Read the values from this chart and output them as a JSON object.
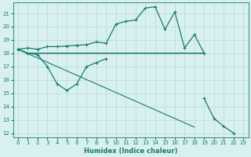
{
  "xlabel": "Humidex (Indice chaleur)",
  "x": [
    0,
    1,
    2,
    3,
    4,
    5,
    6,
    7,
    8,
    9,
    10,
    11,
    12,
    13,
    14,
    15,
    16,
    17,
    18,
    19,
    20,
    21,
    22,
    23
  ],
  "line1_x": [
    0,
    1,
    2,
    3,
    4,
    5,
    6,
    7,
    8,
    9,
    10,
    11,
    12,
    13,
    14,
    15,
    16,
    17,
    18,
    19
  ],
  "line1_y": [
    18.3,
    18.4,
    18.3,
    18.5,
    18.5,
    18.55,
    18.6,
    18.65,
    18.85,
    18.75,
    20.2,
    20.4,
    20.5,
    21.4,
    21.5,
    19.8,
    21.1,
    18.4,
    19.4,
    18.0
  ],
  "line2_x": [
    0,
    1,
    2,
    3,
    4,
    5,
    6,
    7,
    8,
    9,
    10,
    11,
    12,
    13,
    14,
    15,
    16,
    17,
    18,
    19
  ],
  "line2_y": [
    18.3,
    18.0,
    18.0,
    18.0,
    18.0,
    18.0,
    18.0,
    18.0,
    18.0,
    18.0,
    18.0,
    18.0,
    18.0,
    18.0,
    18.0,
    18.0,
    18.0,
    18.0,
    18.0,
    18.0
  ],
  "line3_x": [
    0,
    1,
    2,
    3,
    4,
    5,
    6,
    7,
    8,
    9
  ],
  "line3_y": [
    18.3,
    18.0,
    17.9,
    17.0,
    15.7,
    15.2,
    15.7,
    17.0,
    17.3,
    17.6
  ],
  "line4_x": [
    0,
    1,
    2,
    3,
    4,
    5,
    6,
    7,
    8,
    9,
    10,
    11,
    12,
    13,
    14,
    15,
    16,
    17,
    18,
    19,
    20,
    21,
    22
  ],
  "line4_y": [
    18.3,
    17.97,
    17.65,
    17.32,
    17.0,
    16.67,
    16.35,
    16.02,
    15.7,
    15.37,
    15.05,
    14.72,
    14.4,
    14.07,
    13.75,
    13.42,
    13.1,
    12.77,
    12.45,
    14.6,
    13.1,
    12.5,
    12.0
  ],
  "color": "#1a7a6e",
  "bg_color": "#d8f0f0",
  "grid_color": "#b8dada",
  "ylim_min": 11.7,
  "ylim_max": 21.8,
  "yticks": [
    12,
    13,
    14,
    15,
    16,
    17,
    18,
    19,
    20,
    21
  ],
  "xticks": [
    0,
    1,
    2,
    3,
    4,
    5,
    6,
    7,
    8,
    9,
    10,
    11,
    12,
    13,
    14,
    15,
    16,
    17,
    18,
    19,
    20,
    21,
    22,
    23
  ]
}
